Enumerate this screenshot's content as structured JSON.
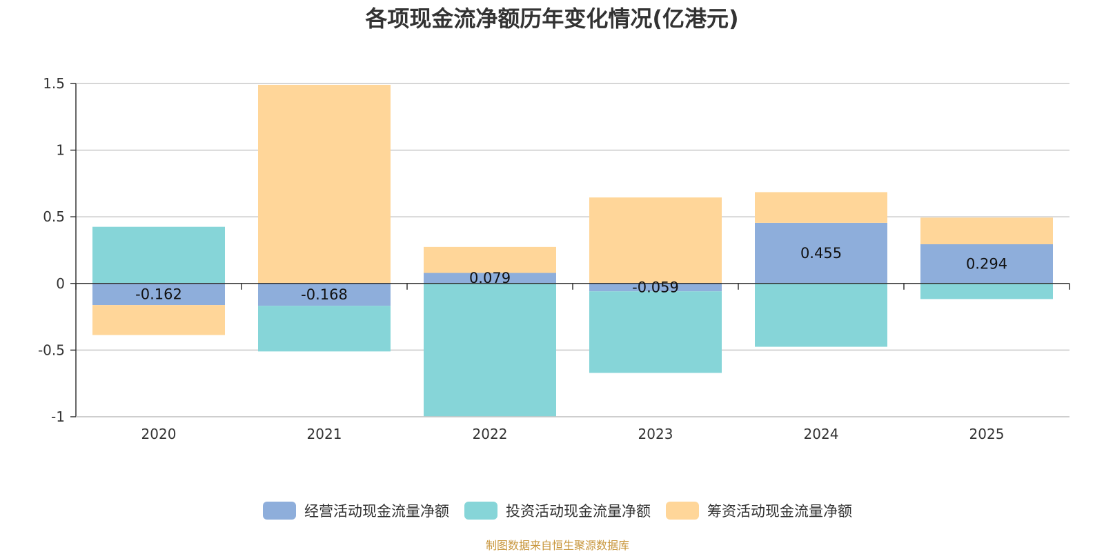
{
  "chart_data": {
    "type": "bar",
    "stacked": true,
    "title": "各项现金流净额历年变化情况(亿港元)",
    "categories": [
      "2020",
      "2021",
      "2022",
      "2023",
      "2024",
      "2025"
    ],
    "series": [
      {
        "name": "经营活动现金流量净额",
        "color": "#8eaedb",
        "values": [
          -0.162,
          -0.168,
          0.079,
          -0.059,
          0.455,
          0.294
        ],
        "labels": [
          "-0.162",
          "-0.168",
          "0.079",
          "-0.059",
          "0.455",
          "0.294"
        ]
      },
      {
        "name": "投资活动现金流量净额",
        "color": "#86d5d8",
        "values": [
          0.425,
          -0.342,
          -1.0,
          -0.612,
          -0.475,
          -0.117
        ]
      },
      {
        "name": "筹资活动现金流量净额",
        "color": "#ffd699",
        "values": [
          -0.225,
          1.49,
          0.195,
          0.645,
          0.23,
          0.2
        ]
      }
    ],
    "yticks": [
      "1.5",
      "1",
      "0.5",
      "0",
      "-0.5",
      "-1"
    ],
    "ylim": [
      -1,
      1.5
    ],
    "xlabel": "",
    "ylabel": "",
    "grid": true,
    "legend_position": "bottom-center"
  },
  "source": "制图数据来自恒生聚源数据库"
}
